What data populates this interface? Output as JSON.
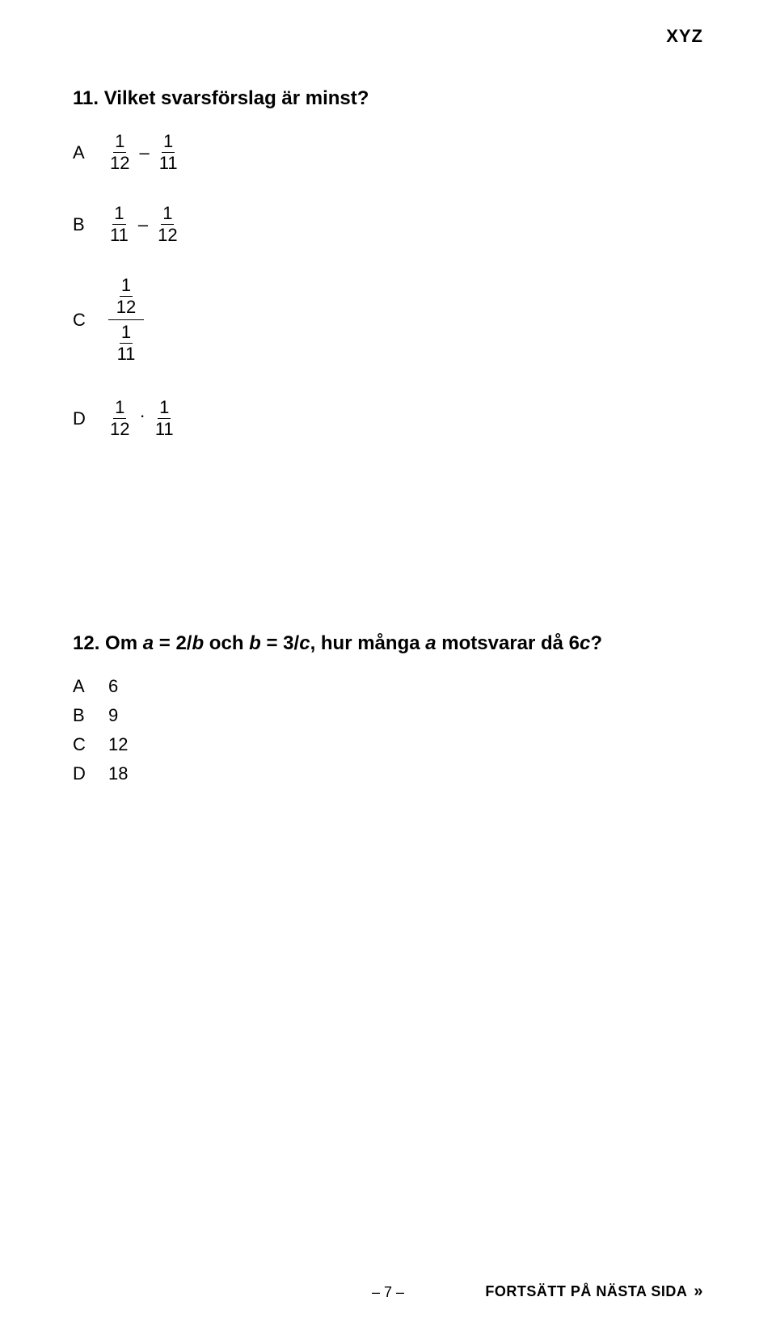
{
  "header": {
    "section": "XYZ"
  },
  "q11": {
    "number": "11.",
    "title": "Vilket svarsförslag är minst?",
    "options": {
      "A": {
        "letter": "A",
        "type": "diff",
        "f1": {
          "n": "1",
          "d": "12"
        },
        "op": "–",
        "f2": {
          "n": "1",
          "d": "11"
        }
      },
      "B": {
        "letter": "B",
        "type": "diff",
        "f1": {
          "n": "1",
          "d": "11"
        },
        "op": "–",
        "f2": {
          "n": "1",
          "d": "12"
        }
      },
      "C": {
        "letter": "C",
        "type": "div",
        "top": {
          "n": "1",
          "d": "12"
        },
        "bot": {
          "n": "1",
          "d": "11"
        }
      },
      "D": {
        "letter": "D",
        "type": "mul",
        "f1": {
          "n": "1",
          "d": "12"
        },
        "op": "·",
        "f2": {
          "n": "1",
          "d": "11"
        }
      }
    }
  },
  "q12": {
    "number": "12.",
    "title_parts": {
      "p1": "Om ",
      "a": "a",
      "p2": " = 2/",
      "b1": "b",
      "p3": " och ",
      "b2": "b",
      "p4": " = 3/",
      "c1": "c",
      "p5": ", hur många ",
      "a2": "a",
      "p6": " motsvarar då 6",
      "c2": "c",
      "p7": "?"
    },
    "options": [
      {
        "letter": "A",
        "value": "6"
      },
      {
        "letter": "B",
        "value": "9"
      },
      {
        "letter": "C",
        "value": "12"
      },
      {
        "letter": "D",
        "value": "18"
      }
    ]
  },
  "footer": {
    "page": "– 7 –",
    "next": "FORTSÄTT PÅ NÄSTA SIDA",
    "arrow": "»"
  }
}
